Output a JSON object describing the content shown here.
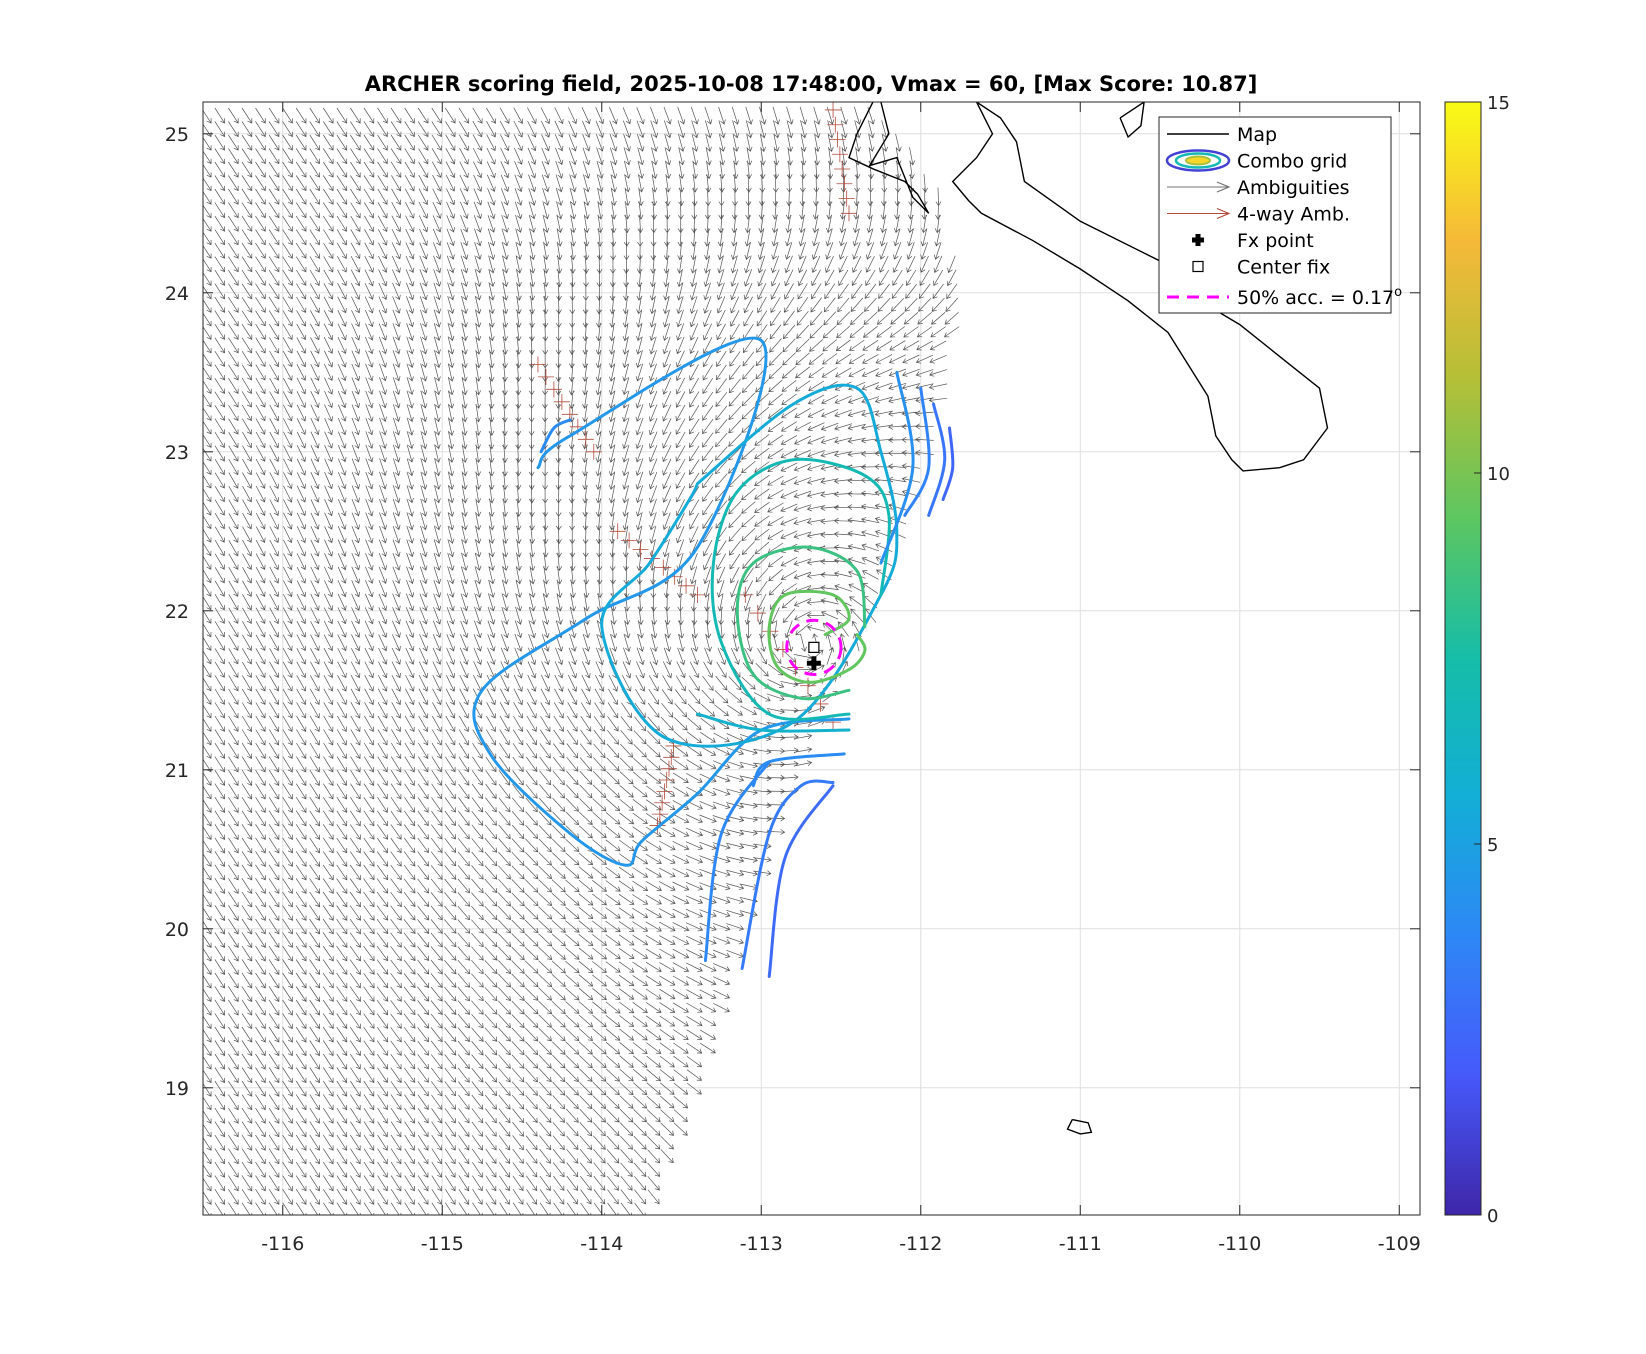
{
  "chart_data": {
    "type": "contour",
    "title": "ARCHER scoring field, 2025-10-08 17:48:00, Vmax = 60, [Max Score: 10.87]",
    "xlabel": "",
    "ylabel": "",
    "xlim": [
      -116.5,
      -108.87
    ],
    "ylim": [
      18.2,
      25.2
    ],
    "xticks": [
      -116,
      -115,
      -114,
      -113,
      -112,
      -111,
      -110,
      -109
    ],
    "yticks": [
      19,
      20,
      21,
      22,
      23,
      24,
      25
    ],
    "grid": true,
    "legend_position": "top-right",
    "legend": [
      {
        "label": "Map",
        "sym": "line",
        "color": "#000000"
      },
      {
        "label": "Combo grid",
        "sym": "ellipse",
        "color": "#3a3fd0"
      },
      {
        "label": "Ambiguities",
        "sym": "arrow",
        "color": "#707070"
      },
      {
        "label": "4-way Amb.",
        "sym": "arrow",
        "color": "#b04a3a"
      },
      {
        "label": "Fx point",
        "sym": "cross",
        "color": "#000000"
      },
      {
        "label": "Center fix",
        "sym": "square",
        "color": "#000000"
      },
      {
        "label": "50% acc. = 0.17",
        "sup": "o",
        "sym": "dash",
        "color": "#ff00ff"
      }
    ],
    "colorbar": {
      "min": 0,
      "max": 15,
      "ticks": [
        0,
        5,
        10,
        15
      ],
      "colors": [
        "#3e26a8",
        "#4659fa",
        "#2e87f6",
        "#13aed6",
        "#16bda8",
        "#5cc661",
        "#b4bf37",
        "#f5b938",
        "#f9fb15"
      ]
    },
    "fx_point": {
      "x": -112.67,
      "y": 21.67
    },
    "center_fix": {
      "x": -112.67,
      "y": 21.77
    },
    "accuracy_circle": {
      "x": -112.67,
      "y": 21.77,
      "r": 0.17
    },
    "wind_swath": {
      "left_edge_x": -116.5,
      "right_edge": [
        [
          -113.7,
          18.2
        ],
        [
          -113.4,
          19.0
        ],
        [
          -113.1,
          20.0
        ],
        [
          -112.75,
          21.0
        ],
        [
          -112.3,
          22.0
        ],
        [
          -111.95,
          23.0
        ],
        [
          -111.75,
          24.0
        ],
        [
          -111.9,
          24.65
        ],
        [
          -112.3,
          25.2
        ]
      ],
      "vortex_center": {
        "x": -112.7,
        "y": 21.8
      }
    },
    "contours": [
      {
        "level": 4.5,
        "points": [
          [
            -114.4,
            22.9
          ],
          [
            -114.2,
            23.1
          ],
          [
            -113.0,
            23.7
          ],
          [
            -113.4,
            22.4
          ],
          [
            -114.1,
            21.95
          ],
          [
            -114.75,
            21.5
          ],
          [
            -114.7,
            21.1
          ],
          [
            -114.2,
            20.6
          ],
          [
            -113.85,
            20.4
          ],
          [
            -113.75,
            20.55
          ],
          [
            -113.4,
            20.85
          ],
          [
            -113.0,
            21.25
          ],
          [
            -112.45,
            21.32
          ]
        ]
      },
      {
        "level": 5.5,
        "points": [
          [
            -113.4,
            22.8
          ],
          [
            -112.8,
            23.3
          ],
          [
            -112.4,
            23.4
          ],
          [
            -112.25,
            23.0
          ],
          [
            -112.15,
            22.5
          ],
          [
            -112.25,
            22.1
          ],
          [
            -112.8,
            21.3
          ],
          [
            -113.6,
            21.2
          ],
          [
            -114.0,
            21.9
          ],
          [
            -113.7,
            22.3
          ],
          [
            -113.45,
            22.7
          ],
          [
            -113.4,
            22.8
          ]
        ]
      },
      {
        "level": 7.0,
        "points": [
          [
            -112.25,
            22.1
          ],
          [
            -112.2,
            22.6
          ],
          [
            -112.35,
            22.85
          ],
          [
            -112.8,
            22.95
          ],
          [
            -113.15,
            22.75
          ],
          [
            -113.3,
            22.3
          ],
          [
            -113.25,
            21.8
          ],
          [
            -112.95,
            21.35
          ],
          [
            -112.45,
            21.35
          ]
        ]
      },
      {
        "level": 8.5,
        "points": [
          [
            -112.35,
            21.9
          ],
          [
            -112.4,
            22.25
          ],
          [
            -112.7,
            22.4
          ],
          [
            -113.05,
            22.3
          ],
          [
            -113.15,
            22.0
          ],
          [
            -113.05,
            21.6
          ],
          [
            -112.75,
            21.45
          ],
          [
            -112.45,
            21.5
          ]
        ]
      },
      {
        "level": 9.5,
        "points": [
          [
            -112.6,
            21.85
          ],
          [
            -112.45,
            21.95
          ],
          [
            -112.55,
            22.1
          ],
          [
            -112.85,
            22.1
          ],
          [
            -112.95,
            21.9
          ],
          [
            -112.9,
            21.65
          ],
          [
            -112.7,
            21.55
          ],
          [
            -112.45,
            21.63
          ],
          [
            -112.35,
            21.75
          ],
          [
            -112.4,
            21.85
          ]
        ]
      },
      {
        "level": 6.0,
        "points": [
          [
            -113.4,
            21.35
          ],
          [
            -113.0,
            21.25
          ],
          [
            -112.45,
            21.25
          ]
        ]
      },
      {
        "level": 4.0,
        "points": [
          [
            -113.05,
            20.9
          ],
          [
            -112.95,
            21.05
          ],
          [
            -112.48,
            21.1
          ]
        ]
      },
      {
        "level": 3.8,
        "points": [
          [
            -113.35,
            19.8
          ],
          [
            -113.25,
            20.6
          ],
          [
            -112.95,
            21.05
          ]
        ]
      },
      {
        "level": 3.2,
        "points": [
          [
            -113.12,
            19.75
          ],
          [
            -112.95,
            20.6
          ],
          [
            -112.75,
            20.9
          ],
          [
            -112.55,
            20.92
          ]
        ]
      },
      {
        "level": 2.6,
        "points": [
          [
            -112.95,
            19.7
          ],
          [
            -112.85,
            20.45
          ],
          [
            -112.55,
            20.9
          ]
        ]
      },
      {
        "level": 4.2,
        "points": [
          [
            -112.15,
            23.5
          ],
          [
            -112.05,
            22.9
          ],
          [
            -112.25,
            22.3
          ]
        ]
      },
      {
        "level": 3.6,
        "points": [
          [
            -112.0,
            23.4
          ],
          [
            -111.95,
            22.9
          ],
          [
            -112.1,
            22.6
          ]
        ]
      },
      {
        "level": 3.0,
        "points": [
          [
            -111.92,
            23.3
          ],
          [
            -111.85,
            22.95
          ],
          [
            -111.95,
            22.6
          ]
        ]
      },
      {
        "level": 2.4,
        "points": [
          [
            -111.82,
            23.15
          ],
          [
            -111.8,
            22.9
          ],
          [
            -111.86,
            22.7
          ]
        ]
      },
      {
        "level": 4.0,
        "points": [
          [
            -114.38,
            23.0
          ],
          [
            -114.3,
            23.15
          ],
          [
            -114.2,
            23.2
          ]
        ]
      }
    ],
    "coastlines": [
      [
        [
          -111.65,
          25.2
        ],
        [
          -111.5,
          25.1
        ],
        [
          -111.4,
          24.95
        ],
        [
          -111.35,
          24.7
        ],
        [
          -111.0,
          24.45
        ],
        [
          -110.5,
          24.2
        ],
        [
          -110.25,
          23.95
        ],
        [
          -110.0,
          23.8
        ],
        [
          -109.75,
          23.6
        ],
        [
          -109.5,
          23.4
        ],
        [
          -109.45,
          23.15
        ],
        [
          -109.6,
          22.95
        ],
        [
          -109.75,
          22.9
        ],
        [
          -109.98,
          22.88
        ],
        [
          -110.05,
          22.95
        ],
        [
          -110.15,
          23.1
        ],
        [
          -110.2,
          23.35
        ],
        [
          -110.45,
          23.75
        ],
        [
          -110.7,
          23.95
        ],
        [
          -111.0,
          24.15
        ],
        [
          -111.3,
          24.33
        ],
        [
          -111.62,
          24.5
        ],
        [
          -111.7,
          24.58
        ],
        [
          -111.8,
          24.7
        ],
        [
          -111.65,
          24.85
        ],
        [
          -111.55,
          25.0
        ],
        [
          -111.65,
          25.2
        ]
      ],
      [
        [
          -110.75,
          25.1
        ],
        [
          -110.6,
          25.2
        ],
        [
          -110.62,
          25.05
        ],
        [
          -110.7,
          24.98
        ],
        [
          -110.75,
          25.1
        ]
      ],
      [
        [
          -112.25,
          25.2
        ],
        [
          -112.2,
          25.0
        ],
        [
          -112.32,
          24.8
        ],
        [
          -112.15,
          24.85
        ],
        [
          -112.05,
          24.6
        ],
        [
          -111.95,
          24.5
        ],
        [
          -112.02,
          24.62
        ],
        [
          -112.1,
          24.7
        ],
        [
          -112.3,
          24.78
        ],
        [
          -112.45,
          24.85
        ],
        [
          -112.4,
          25.0
        ],
        [
          -112.3,
          25.2
        ]
      ],
      [
        [
          -111.05,
          18.8
        ],
        [
          -110.95,
          18.78
        ],
        [
          -110.93,
          18.72
        ],
        [
          -111.0,
          18.71
        ],
        [
          -111.08,
          18.74
        ],
        [
          -111.05,
          18.8
        ]
      ]
    ]
  }
}
